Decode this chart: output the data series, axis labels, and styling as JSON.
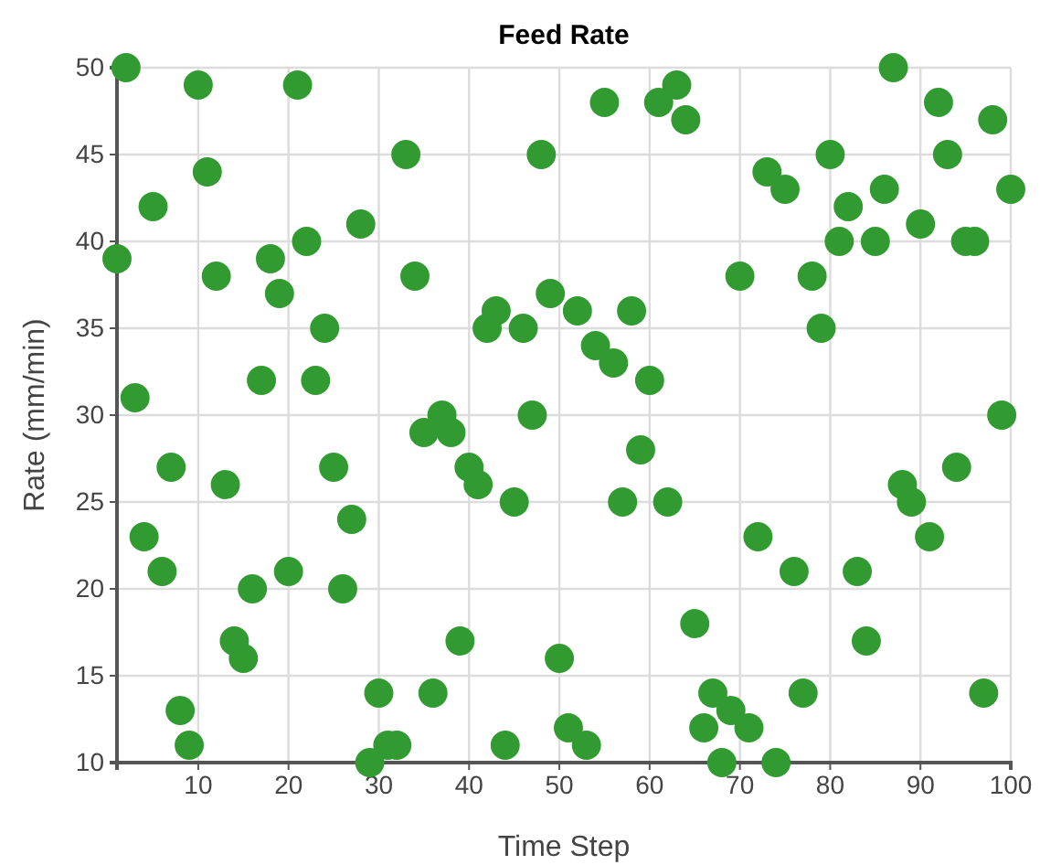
{
  "chart_data": {
    "type": "scatter",
    "title": "Feed Rate",
    "xlabel": "Time Step",
    "ylabel": "Rate (mm/min)",
    "x": [
      1,
      2,
      3,
      4,
      5,
      6,
      7,
      8,
      9,
      10,
      11,
      12,
      13,
      14,
      15,
      16,
      17,
      18,
      19,
      20,
      21,
      22,
      23,
      24,
      25,
      26,
      27,
      28,
      29,
      30,
      31,
      32,
      33,
      34,
      35,
      36,
      37,
      38,
      39,
      40,
      41,
      42,
      43,
      44,
      45,
      46,
      47,
      48,
      49,
      50,
      51,
      52,
      53,
      54,
      55,
      56,
      57,
      58,
      59,
      60,
      61,
      62,
      63,
      64,
      65,
      66,
      67,
      68,
      69,
      70,
      71,
      72,
      73,
      74,
      75,
      76,
      77,
      78,
      79,
      80,
      81,
      82,
      83,
      84,
      85,
      86,
      87,
      88,
      89,
      90,
      91,
      92,
      93,
      94,
      95,
      96,
      97,
      98,
      99,
      100
    ],
    "series": [
      {
        "color": "#319b31",
        "values": [
          39,
          50,
          31,
          23,
          42,
          21,
          27,
          13,
          11,
          49,
          44,
          38,
          26,
          17,
          16,
          20,
          32,
          39,
          37,
          21,
          49,
          40,
          32,
          35,
          27,
          20,
          24,
          41,
          10,
          14,
          11,
          11,
          45,
          38,
          29,
          14,
          30,
          29,
          17,
          27,
          26,
          35,
          36,
          11,
          25,
          35,
          30,
          45,
          37,
          16,
          12,
          36,
          11,
          34,
          48,
          33,
          25,
          36,
          28,
          32,
          48,
          25,
          49,
          47,
          18,
          12,
          14,
          10,
          13,
          38,
          12,
          23,
          44,
          10,
          43,
          21,
          14,
          38,
          35,
          45,
          40,
          42,
          21,
          17,
          40,
          43,
          50,
          26,
          25,
          41,
          23,
          48,
          45,
          27,
          40,
          40,
          14,
          47,
          30,
          43
        ]
      }
    ],
    "xlim": [
      1,
      100
    ],
    "xticks": [
      10,
      20,
      30,
      40,
      50,
      60,
      70,
      80,
      90,
      100
    ],
    "ylim": [
      10,
      50
    ],
    "yticks": [
      10,
      15,
      20,
      25,
      30,
      35,
      40,
      45,
      50
    ],
    "grid": true,
    "marker": "circle"
  }
}
